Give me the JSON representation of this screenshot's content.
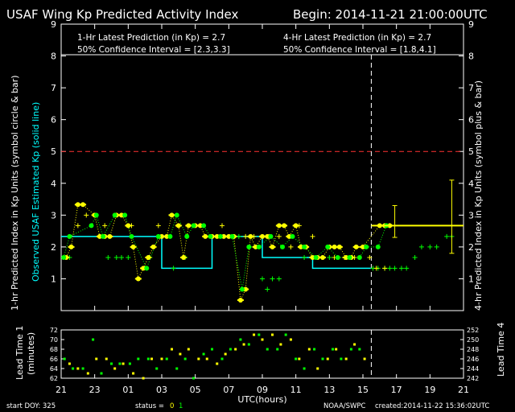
{
  "header": {
    "title": "USAF Wing Kp Predicted Activity Index",
    "begin": "Begin: 2014-11-21 21:00:00UTC"
  },
  "info": {
    "one_hr_prediction": "1-Hr Latest Prediction (in Kp) = 2.7",
    "one_hr_confidence": "50% Confidence Interval  =  [2.3,3.3]",
    "four_hr_prediction": "4-Hr Latest Prediction (in Kp) = 2.7",
    "four_hr_confidence": "50% Confidence Interval  =  [1.8,4.1]"
  },
  "axes": {
    "left_label_white": "1-hr Predicted Index in Kp Units (symbol circle & bar)",
    "left_label_cyan": "Observed USAF Estimated Kp (solid line)",
    "right_label": "4-hr Predicted Index in Kp Units (symbol plus & bar)",
    "xlabel": "UTC(hours)",
    "lead_left_label_1": "Lead Time 1",
    "lead_left_label_2": "(minutes)",
    "lead_right_label": "Lead Time 4"
  },
  "footer": {
    "start_doy": "start DOY:  325",
    "status_label": "status =",
    "status_0": "0",
    "status_1": "1",
    "source": "NOAA/SWPC",
    "created": "created:2014-11-22 15:36:02UTC"
  },
  "colors": {
    "background": "#000000",
    "text": "#ffffff",
    "observed": "#00ffff",
    "threshold": "#ff3333",
    "yellow": "#ffff00",
    "green": "#00ff00"
  },
  "chart_data": {
    "type": "line",
    "x_ticks": [
      "21",
      "23",
      "01",
      "03",
      "05",
      "07",
      "09",
      "11",
      "13",
      "15",
      "17",
      "19",
      "21"
    ],
    "x_range_hours": [
      0,
      24
    ],
    "ylim": [
      0,
      9
    ],
    "y_ticks": [
      "1",
      "2",
      "3",
      "4",
      "5",
      "6",
      "7",
      "8",
      "9"
    ],
    "threshold_kp": 5,
    "now_marker_hour": 18.5,
    "observed_kp": [
      {
        "x": 0,
        "y": 2.33
      },
      {
        "x": 6,
        "y": 2.33
      },
      {
        "x": 6,
        "y": 1.33
      },
      {
        "x": 9,
        "y": 1.33
      },
      {
        "x": 9,
        "y": 2.33
      },
      {
        "x": 12,
        "y": 2.33
      },
      {
        "x": 12,
        "y": 1.67
      },
      {
        "x": 15,
        "y": 1.67
      },
      {
        "x": 15,
        "y": 1.33
      },
      {
        "x": 18,
        "y": 1.33
      },
      {
        "x": 18.5,
        "y": 1.33
      }
    ],
    "one_hr_yellow": [
      {
        "x": 0.3,
        "y": 1.67
      },
      {
        "x": 0.6,
        "y": 2.0
      },
      {
        "x": 1.0,
        "y": 3.33
      },
      {
        "x": 1.3,
        "y": 3.33
      },
      {
        "x": 2.0,
        "y": 3.0
      },
      {
        "x": 2.3,
        "y": 2.33
      },
      {
        "x": 2.6,
        "y": 2.33
      },
      {
        "x": 2.9,
        "y": 2.33
      },
      {
        "x": 3.3,
        "y": 3.0
      },
      {
        "x": 3.6,
        "y": 3.0
      },
      {
        "x": 4.0,
        "y": 2.67
      },
      {
        "x": 4.3,
        "y": 2.0
      },
      {
        "x": 4.6,
        "y": 1.0
      },
      {
        "x": 4.9,
        "y": 1.33
      },
      {
        "x": 5.2,
        "y": 1.67
      },
      {
        "x": 5.5,
        "y": 2.0
      },
      {
        "x": 6.0,
        "y": 2.33
      },
      {
        "x": 6.3,
        "y": 2.33
      },
      {
        "x": 6.6,
        "y": 3.0
      },
      {
        "x": 7.0,
        "y": 2.67
      },
      {
        "x": 7.3,
        "y": 1.67
      },
      {
        "x": 7.6,
        "y": 2.67
      },
      {
        "x": 8.0,
        "y": 2.67
      },
      {
        "x": 8.3,
        "y": 2.67
      },
      {
        "x": 8.6,
        "y": 2.33
      },
      {
        "x": 9.0,
        "y": 2.33
      },
      {
        "x": 9.3,
        "y": 2.33
      },
      {
        "x": 9.7,
        "y": 2.33
      },
      {
        "x": 10.0,
        "y": 2.33
      },
      {
        "x": 10.3,
        "y": 2.33
      },
      {
        "x": 10.7,
        "y": 0.33
      },
      {
        "x": 11.0,
        "y": 0.67
      },
      {
        "x": 11.3,
        "y": 2.33
      },
      {
        "x": 11.6,
        "y": 2.0
      },
      {
        "x": 12.0,
        "y": 2.33
      },
      {
        "x": 12.3,
        "y": 2.33
      },
      {
        "x": 12.6,
        "y": 2.0
      },
      {
        "x": 13.0,
        "y": 2.67
      },
      {
        "x": 13.3,
        "y": 2.67
      },
      {
        "x": 13.6,
        "y": 2.33
      },
      {
        "x": 14.0,
        "y": 2.67
      },
      {
        "x": 14.3,
        "y": 2.0
      },
      {
        "x": 14.6,
        "y": 2.0
      },
      {
        "x": 15.0,
        "y": 1.67
      },
      {
        "x": 15.3,
        "y": 1.67
      },
      {
        "x": 15.6,
        "y": 1.67
      },
      {
        "x": 16.0,
        "y": 2.0
      },
      {
        "x": 16.3,
        "y": 2.0
      },
      {
        "x": 16.6,
        "y": 2.0
      },
      {
        "x": 17.0,
        "y": 1.67
      },
      {
        "x": 17.3,
        "y": 1.67
      },
      {
        "x": 17.6,
        "y": 2.0
      },
      {
        "x": 18.0,
        "y": 2.0
      },
      {
        "x": 19.0,
        "y": 2.67
      },
      {
        "x": 19.3,
        "y": 2.67
      },
      {
        "x": 19.6,
        "y": 2.67
      }
    ],
    "one_hr_green": [
      {
        "x": 0.15,
        "y": 1.67
      },
      {
        "x": 0.5,
        "y": 2.33
      },
      {
        "x": 1.8,
        "y": 2.67
      },
      {
        "x": 2.1,
        "y": 3.0
      },
      {
        "x": 2.5,
        "y": 2.33
      },
      {
        "x": 3.2,
        "y": 3.0
      },
      {
        "x": 3.8,
        "y": 3.0
      },
      {
        "x": 4.2,
        "y": 2.33
      },
      {
        "x": 5.1,
        "y": 1.33
      },
      {
        "x": 5.8,
        "y": 2.33
      },
      {
        "x": 6.5,
        "y": 2.33
      },
      {
        "x": 6.9,
        "y": 3.0
      },
      {
        "x": 7.5,
        "y": 2.33
      },
      {
        "x": 7.9,
        "y": 2.67
      },
      {
        "x": 8.5,
        "y": 2.67
      },
      {
        "x": 8.9,
        "y": 2.33
      },
      {
        "x": 9.5,
        "y": 2.33
      },
      {
        "x": 10.2,
        "y": 2.33
      },
      {
        "x": 10.8,
        "y": 0.67
      },
      {
        "x": 11.2,
        "y": 2.0
      },
      {
        "x": 11.8,
        "y": 2.0
      },
      {
        "x": 12.5,
        "y": 2.33
      },
      {
        "x": 13.2,
        "y": 2.0
      },
      {
        "x": 13.8,
        "y": 2.33
      },
      {
        "x": 14.5,
        "y": 2.0
      },
      {
        "x": 15.2,
        "y": 1.67
      },
      {
        "x": 15.9,
        "y": 2.0
      },
      {
        "x": 16.5,
        "y": 1.67
      },
      {
        "x": 17.2,
        "y": 1.67
      },
      {
        "x": 17.8,
        "y": 1.67
      },
      {
        "x": 18.2,
        "y": 2.0
      },
      {
        "x": 18.9,
        "y": 2.0
      },
      {
        "x": 19.4,
        "y": 2.67
      }
    ],
    "four_hr_yellow_plus": [
      {
        "x": 1.0,
        "y": 2.67
      },
      {
        "x": 1.5,
        "y": 3.0
      },
      {
        "x": 2.6,
        "y": 2.67
      },
      {
        "x": 4.2,
        "y": 2.67
      },
      {
        "x": 5.8,
        "y": 2.67
      },
      {
        "x": 7.0,
        "y": 2.67
      },
      {
        "x": 9.6,
        "y": 2.67
      },
      {
        "x": 11.0,
        "y": 2.33
      },
      {
        "x": 11.5,
        "y": 2.33
      },
      {
        "x": 12.4,
        "y": 2.33
      },
      {
        "x": 13.0,
        "y": 2.33
      },
      {
        "x": 13.7,
        "y": 2.0
      },
      {
        "x": 14.2,
        "y": 2.67
      },
      {
        "x": 15.0,
        "y": 2.33
      },
      {
        "x": 15.6,
        "y": 1.67
      },
      {
        "x": 16.3,
        "y": 1.67
      },
      {
        "x": 16.9,
        "y": 1.67
      },
      {
        "x": 17.5,
        "y": 1.67
      },
      {
        "x": 18.4,
        "y": 1.67
      },
      {
        "x": 18.8,
        "y": 1.33
      },
      {
        "x": 19.3,
        "y": 1.33
      },
      {
        "x": 19.6,
        "y": 2.67
      }
    ],
    "four_hr_green_plus": [
      {
        "x": 0.5,
        "y": 1.67
      },
      {
        "x": 2.8,
        "y": 1.67
      },
      {
        "x": 3.3,
        "y": 1.67
      },
      {
        "x": 3.6,
        "y": 1.67
      },
      {
        "x": 4.0,
        "y": 1.67
      },
      {
        "x": 5.3,
        "y": 1.67
      },
      {
        "x": 6.7,
        "y": 1.33
      },
      {
        "x": 7.4,
        "y": 1.67
      },
      {
        "x": 8.3,
        "y": 2.67
      },
      {
        "x": 10.6,
        "y": 2.33
      },
      {
        "x": 12.0,
        "y": 1.0
      },
      {
        "x": 12.3,
        "y": 0.67
      },
      {
        "x": 12.6,
        "y": 1.0
      },
      {
        "x": 13.0,
        "y": 1.0
      },
      {
        "x": 14.5,
        "y": 1.67
      },
      {
        "x": 16.0,
        "y": 1.67
      },
      {
        "x": 17.0,
        "y": 1.67
      },
      {
        "x": 18.6,
        "y": 1.33
      },
      {
        "x": 18.9,
        "y": 1.33
      },
      {
        "x": 19.3,
        "y": 1.33
      },
      {
        "x": 19.6,
        "y": 1.33
      },
      {
        "x": 19.9,
        "y": 1.33
      },
      {
        "x": 20.3,
        "y": 1.33
      },
      {
        "x": 20.6,
        "y": 1.33
      },
      {
        "x": 21.1,
        "y": 1.67
      },
      {
        "x": 21.5,
        "y": 2.0
      },
      {
        "x": 22.0,
        "y": 2.0
      },
      {
        "x": 22.4,
        "y": 2.0
      },
      {
        "x": 23.0,
        "y": 2.33
      },
      {
        "x": 23.3,
        "y": 2.33
      }
    ],
    "prediction_bar": {
      "x_start": 18.5,
      "x_end": 24,
      "y": 2.67
    },
    "error_bars": [
      {
        "x": 19.9,
        "low": 2.3,
        "high": 3.3
      },
      {
        "x": 23.3,
        "low": 1.8,
        "high": 4.1
      }
    ],
    "lead_time": {
      "ylim": [
        62,
        72
      ],
      "left_ticks": [
        "62",
        "64",
        "66",
        "68",
        "70",
        "72"
      ],
      "right_ticks": [
        "242",
        "244",
        "246",
        "248",
        "250",
        "252"
      ],
      "yellow": [
        {
          "x": 0.5,
          "y": 65
        },
        {
          "x": 1.0,
          "y": 64
        },
        {
          "x": 1.6,
          "y": 63
        },
        {
          "x": 2.1,
          "y": 66
        },
        {
          "x": 2.7,
          "y": 66
        },
        {
          "x": 3.2,
          "y": 64
        },
        {
          "x": 3.7,
          "y": 65
        },
        {
          "x": 4.3,
          "y": 63
        },
        {
          "x": 4.9,
          "y": 62
        },
        {
          "x": 5.4,
          "y": 66
        },
        {
          "x": 6.0,
          "y": 66
        },
        {
          "x": 6.6,
          "y": 68
        },
        {
          "x": 7.1,
          "y": 67
        },
        {
          "x": 7.6,
          "y": 68
        },
        {
          "x": 8.2,
          "y": 66
        },
        {
          "x": 8.7,
          "y": 66
        },
        {
          "x": 9.3,
          "y": 65
        },
        {
          "x": 9.8,
          "y": 67
        },
        {
          "x": 10.4,
          "y": 68
        },
        {
          "x": 10.9,
          "y": 69
        },
        {
          "x": 11.5,
          "y": 71
        },
        {
          "x": 12.0,
          "y": 70
        },
        {
          "x": 12.6,
          "y": 71
        },
        {
          "x": 13.1,
          "y": 69
        },
        {
          "x": 13.7,
          "y": 70
        },
        {
          "x": 14.2,
          "y": 66
        },
        {
          "x": 14.8,
          "y": 68
        },
        {
          "x": 15.3,
          "y": 64
        },
        {
          "x": 15.9,
          "y": 66
        },
        {
          "x": 16.4,
          "y": 68
        },
        {
          "x": 17.0,
          "y": 66
        },
        {
          "x": 17.5,
          "y": 69
        },
        {
          "x": 18.1,
          "y": 66
        }
      ],
      "green": [
        {
          "x": 0.2,
          "y": 66
        },
        {
          "x": 0.7,
          "y": 64
        },
        {
          "x": 1.3,
          "y": 64
        },
        {
          "x": 1.9,
          "y": 70
        },
        {
          "x": 2.4,
          "y": 63
        },
        {
          "x": 3.0,
          "y": 65
        },
        {
          "x": 3.5,
          "y": 65
        },
        {
          "x": 4.1,
          "y": 65
        },
        {
          "x": 4.6,
          "y": 66
        },
        {
          "x": 5.2,
          "y": 66
        },
        {
          "x": 5.7,
          "y": 64
        },
        {
          "x": 6.3,
          "y": 66
        },
        {
          "x": 6.9,
          "y": 64
        },
        {
          "x": 7.4,
          "y": 66
        },
        {
          "x": 7.9,
          "y": 62
        },
        {
          "x": 8.5,
          "y": 67
        },
        {
          "x": 9.0,
          "y": 68
        },
        {
          "x": 9.6,
          "y": 66
        },
        {
          "x": 10.1,
          "y": 68
        },
        {
          "x": 10.7,
          "y": 70
        },
        {
          "x": 11.2,
          "y": 69
        },
        {
          "x": 11.8,
          "y": 71
        },
        {
          "x": 12.3,
          "y": 68
        },
        {
          "x": 12.9,
          "y": 68
        },
        {
          "x": 13.4,
          "y": 71
        },
        {
          "x": 14.0,
          "y": 66
        },
        {
          "x": 14.5,
          "y": 64
        },
        {
          "x": 15.1,
          "y": 68
        },
        {
          "x": 15.6,
          "y": 66
        },
        {
          "x": 16.2,
          "y": 68
        },
        {
          "x": 16.7,
          "y": 66
        },
        {
          "x": 17.3,
          "y": 68
        },
        {
          "x": 17.8,
          "y": 68
        }
      ]
    }
  }
}
